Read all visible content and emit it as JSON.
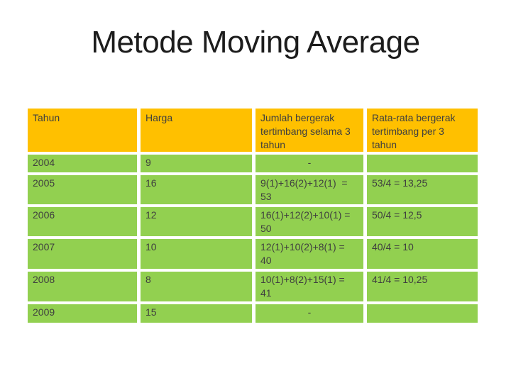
{
  "slide": {
    "title": "Metode Moving Average"
  },
  "colors": {
    "background": "#FFFFFF",
    "header_bg": "#FFC000",
    "row_bg": "#92D050",
    "text": "#3F3F3F",
    "title_text": "#1C1C1C"
  },
  "table": {
    "header": [
      "Tahun",
      "Harga",
      "Jumlah bergerak\ntertimbang selama 3\ntahun",
      "Rata-rata bergerak\ntertimbang per 3\ntahun"
    ],
    "rows": [
      [
        "2004",
        "9",
        "-",
        ""
      ],
      [
        "2005",
        "16",
        "9(1)+16(2)+12(1)  =\n53",
        "53/4 = 13,25"
      ],
      [
        "2006",
        "12",
        "16(1)+12(2)+10(1) =\n50",
        "50/4 = 12,5"
      ],
      [
        "2007",
        "10",
        "12(1)+10(2)+8(1) =\n40",
        "40/4 = 10"
      ],
      [
        "2008",
        "8",
        "10(1)+8(2)+15(1) =\n41",
        "41/4 = 10,25"
      ],
      [
        "2009",
        "15",
        "-",
        ""
      ]
    ]
  }
}
